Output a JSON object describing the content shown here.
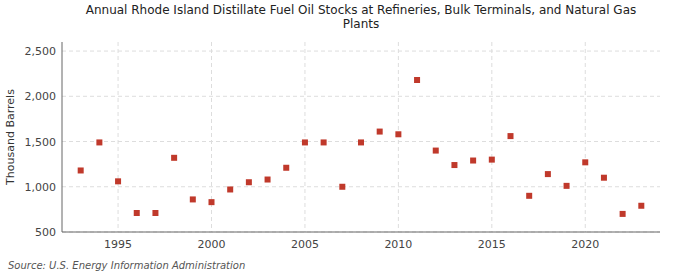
{
  "chart_data": {
    "type": "scatter",
    "title": "Annual Rhode Island Distillate Fuel Oil Stocks at Refineries, Bulk Terminals, and Natural Gas\nPlants",
    "y_label": "Thousand Barrels",
    "source": "Source: U.S. Energy Information Administration",
    "x": [
      1993,
      1994,
      1995,
      1996,
      1997,
      1998,
      1999,
      2000,
      2001,
      2002,
      2003,
      2004,
      2005,
      2006,
      2007,
      2008,
      2009,
      2010,
      2011,
      2012,
      2013,
      2014,
      2015,
      2016,
      2017,
      2018,
      2019,
      2020,
      2021,
      2022,
      2023
    ],
    "values": [
      1180,
      1490,
      1060,
      710,
      710,
      1320,
      860,
      830,
      970,
      1050,
      1080,
      1210,
      1490,
      1490,
      1000,
      1490,
      1610,
      1580,
      2180,
      1400,
      1240,
      1290,
      1300,
      1560,
      900,
      1140,
      1010,
      1270,
      1100,
      700,
      790
    ],
    "color": "#c0392b",
    "marker": "square",
    "grid": true,
    "xlim": [
      1992,
      2024
    ],
    "xticks": [
      1995,
      2000,
      2005,
      2010,
      2015,
      2020
    ],
    "ylim": [
      500,
      2600
    ],
    "yticks": [
      500,
      {
        "value": 1000,
        "label": "1,000"
      },
      {
        "value": 1500,
        "label": "1,500"
      },
      {
        "value": 2000,
        "label": "2,000"
      },
      {
        "value": 2500,
        "label": "2,500"
      }
    ]
  }
}
